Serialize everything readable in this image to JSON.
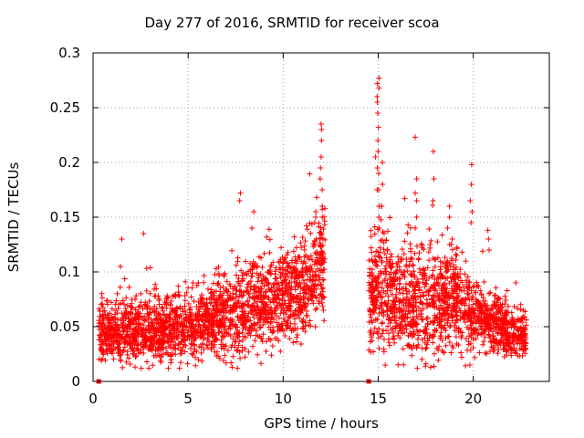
{
  "chart_data": {
    "type": "scatter",
    "title": "Day 277 of 2016, SRMTID for receiver scoa",
    "xlabel": "GPS time / hours",
    "ylabel": "SRMTID / TECUs",
    "xlim": [
      0,
      24
    ],
    "ylim": [
      0,
      0.3
    ],
    "x_ticks": [
      0,
      5,
      10,
      15,
      20
    ],
    "x_tick_labels": [
      "0",
      "5",
      "10",
      "15",
      "20"
    ],
    "y_ticks": [
      0,
      0.05,
      0.1,
      0.15,
      0.2,
      0.25,
      0.3
    ],
    "y_tick_labels": [
      "0",
      "0.05",
      "0.1",
      "0.15",
      "0.2",
      "0.25",
      "0.3"
    ],
    "grid": true,
    "marker": "+",
    "colors": {
      "series": "#ff0000",
      "grid": "#a0a0a0",
      "axes": "#000000"
    },
    "segments": [
      {
        "name": "segment-1",
        "x_start": 0.3,
        "x_end": 12.2,
        "points_per_hour": 180,
        "profile": [
          [
            0.3,
            0.045,
            0.012
          ],
          [
            2,
            0.048,
            0.014
          ],
          [
            4,
            0.046,
            0.014
          ],
          [
            6,
            0.055,
            0.016
          ],
          [
            8,
            0.065,
            0.02
          ],
          [
            10,
            0.075,
            0.02
          ],
          [
            11.5,
            0.09,
            0.025
          ],
          [
            12.2,
            0.11,
            0.03
          ]
        ]
      },
      {
        "name": "segment-2",
        "x_start": 14.5,
        "x_end": 22.8,
        "points_per_hour": 180,
        "profile": [
          [
            14.5,
            0.07,
            0.02
          ],
          [
            15,
            0.09,
            0.03
          ],
          [
            16,
            0.075,
            0.022
          ],
          [
            17,
            0.07,
            0.025
          ],
          [
            18,
            0.07,
            0.025
          ],
          [
            19,
            0.075,
            0.02
          ],
          [
            20,
            0.06,
            0.015
          ],
          [
            21,
            0.055,
            0.014
          ],
          [
            22,
            0.045,
            0.012
          ],
          [
            22.8,
            0.04,
            0.01
          ]
        ]
      }
    ],
    "spikes": [
      {
        "x": 1.5,
        "values": [
          0.13,
          0.105
        ]
      },
      {
        "x": 2.7,
        "values": [
          0.135
        ]
      },
      {
        "x": 7.7,
        "values": [
          0.172,
          0.165
        ]
      },
      {
        "x": 8.4,
        "values": [
          0.155,
          0.14
        ]
      },
      {
        "x": 11.7,
        "values": [
          0.155,
          0.15,
          0.145
        ]
      },
      {
        "x": 12.0,
        "values": [
          0.235,
          0.23,
          0.22,
          0.205,
          0.195,
          0.185,
          0.175,
          0.16,
          0.15
        ]
      },
      {
        "x": 15.0,
        "values": [
          0.277,
          0.272,
          0.268,
          0.26,
          0.255,
          0.245,
          0.232,
          0.22,
          0.21,
          0.19,
          0.175,
          0.16,
          0.15,
          0.14
        ]
      },
      {
        "x": 14.9,
        "values": [
          0.205,
          0.195,
          0.175
        ]
      },
      {
        "x": 15.2,
        "values": [
          0.2,
          0.18,
          0.16
        ]
      },
      {
        "x": 17.0,
        "values": [
          0.223,
          0.185,
          0.172,
          0.165,
          0.15,
          0.14
        ]
      },
      {
        "x": 17.9,
        "values": [
          0.21,
          0.185,
          0.165
        ]
      },
      {
        "x": 18.7,
        "values": [
          0.16,
          0.15,
          0.14
        ]
      },
      {
        "x": 19.9,
        "values": [
          0.198,
          0.18,
          0.165,
          0.155,
          0.145
        ]
      },
      {
        "x": 20.8,
        "values": [
          0.138,
          0.13,
          0.12
        ]
      },
      {
        "x": 19.8,
        "values": [
          0.015
        ]
      }
    ],
    "baseline_markers": [
      {
        "x": 0.3,
        "y": 0
      },
      {
        "x": 14.5,
        "y": 0
      }
    ]
  }
}
